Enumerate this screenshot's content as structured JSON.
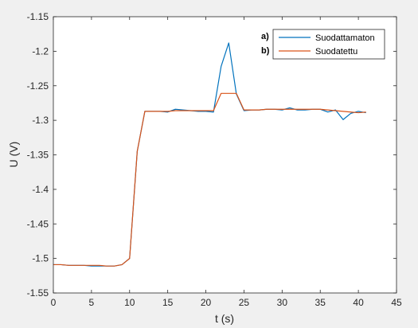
{
  "chart_data": {
    "type": "line",
    "title": "",
    "xlabel": "t (s)",
    "ylabel": "U (V)",
    "xlim": [
      0,
      45
    ],
    "ylim": [
      -1.55,
      -1.15
    ],
    "xticks": [
      0,
      5,
      10,
      15,
      20,
      25,
      30,
      35,
      40,
      45
    ],
    "yticks": [
      -1.15,
      -1.2,
      -1.25,
      -1.3,
      -1.35,
      -1.4,
      -1.45,
      -1.5,
      -1.55
    ],
    "xtick_labels": [
      "0",
      "5",
      "10",
      "15",
      "20",
      "25",
      "30",
      "35",
      "40",
      "45"
    ],
    "ytick_labels": [
      "-1.15",
      "-1.2",
      "-1.25",
      "-1.3",
      "-1.35",
      "-1.4",
      "-1.45",
      "-1.5",
      "-1.55"
    ],
    "grid": false,
    "legend_position": "top-right",
    "x": [
      0,
      1,
      2,
      3,
      4,
      5,
      6,
      7,
      8,
      9,
      10,
      11,
      12,
      13,
      14,
      15,
      16,
      17,
      18,
      19,
      20,
      21,
      22,
      23,
      24,
      25,
      26,
      27,
      28,
      29,
      30,
      31,
      32,
      33,
      34,
      35,
      36,
      37,
      38,
      39,
      40,
      41
    ],
    "series": [
      {
        "name": "Suodattamaton",
        "color": "#0072bd",
        "values": [
          -1.509,
          -1.509,
          -1.51,
          -1.51,
          -1.51,
          -1.511,
          -1.511,
          -1.511,
          -1.511,
          -1.509,
          -1.5,
          -1.345,
          -1.287,
          -1.287,
          -1.287,
          -1.288,
          -1.284,
          -1.285,
          -1.286,
          -1.287,
          -1.287,
          -1.288,
          -1.222,
          -1.188,
          -1.262,
          -1.286,
          -1.285,
          -1.285,
          -1.284,
          -1.284,
          -1.285,
          -1.282,
          -1.285,
          -1.285,
          -1.284,
          -1.284,
          -1.288,
          -1.285,
          -1.299,
          -1.29,
          -1.287,
          -1.289
        ]
      },
      {
        "name": "Suodatettu",
        "color": "#d95319",
        "values": [
          -1.509,
          -1.509,
          -1.51,
          -1.51,
          -1.51,
          -1.51,
          -1.51,
          -1.511,
          -1.511,
          -1.509,
          -1.5,
          -1.345,
          -1.287,
          -1.287,
          -1.287,
          -1.287,
          -1.286,
          -1.286,
          -1.286,
          -1.286,
          -1.286,
          -1.286,
          -1.261,
          -1.261,
          -1.261,
          -1.285,
          -1.285,
          -1.285,
          -1.284,
          -1.284,
          -1.284,
          -1.284,
          -1.284,
          -1.284,
          -1.284,
          -1.284,
          -1.285,
          -1.286,
          -1.287,
          -1.288,
          -1.289,
          -1.288
        ]
      }
    ],
    "annotations": [
      "a)",
      "b)"
    ]
  }
}
